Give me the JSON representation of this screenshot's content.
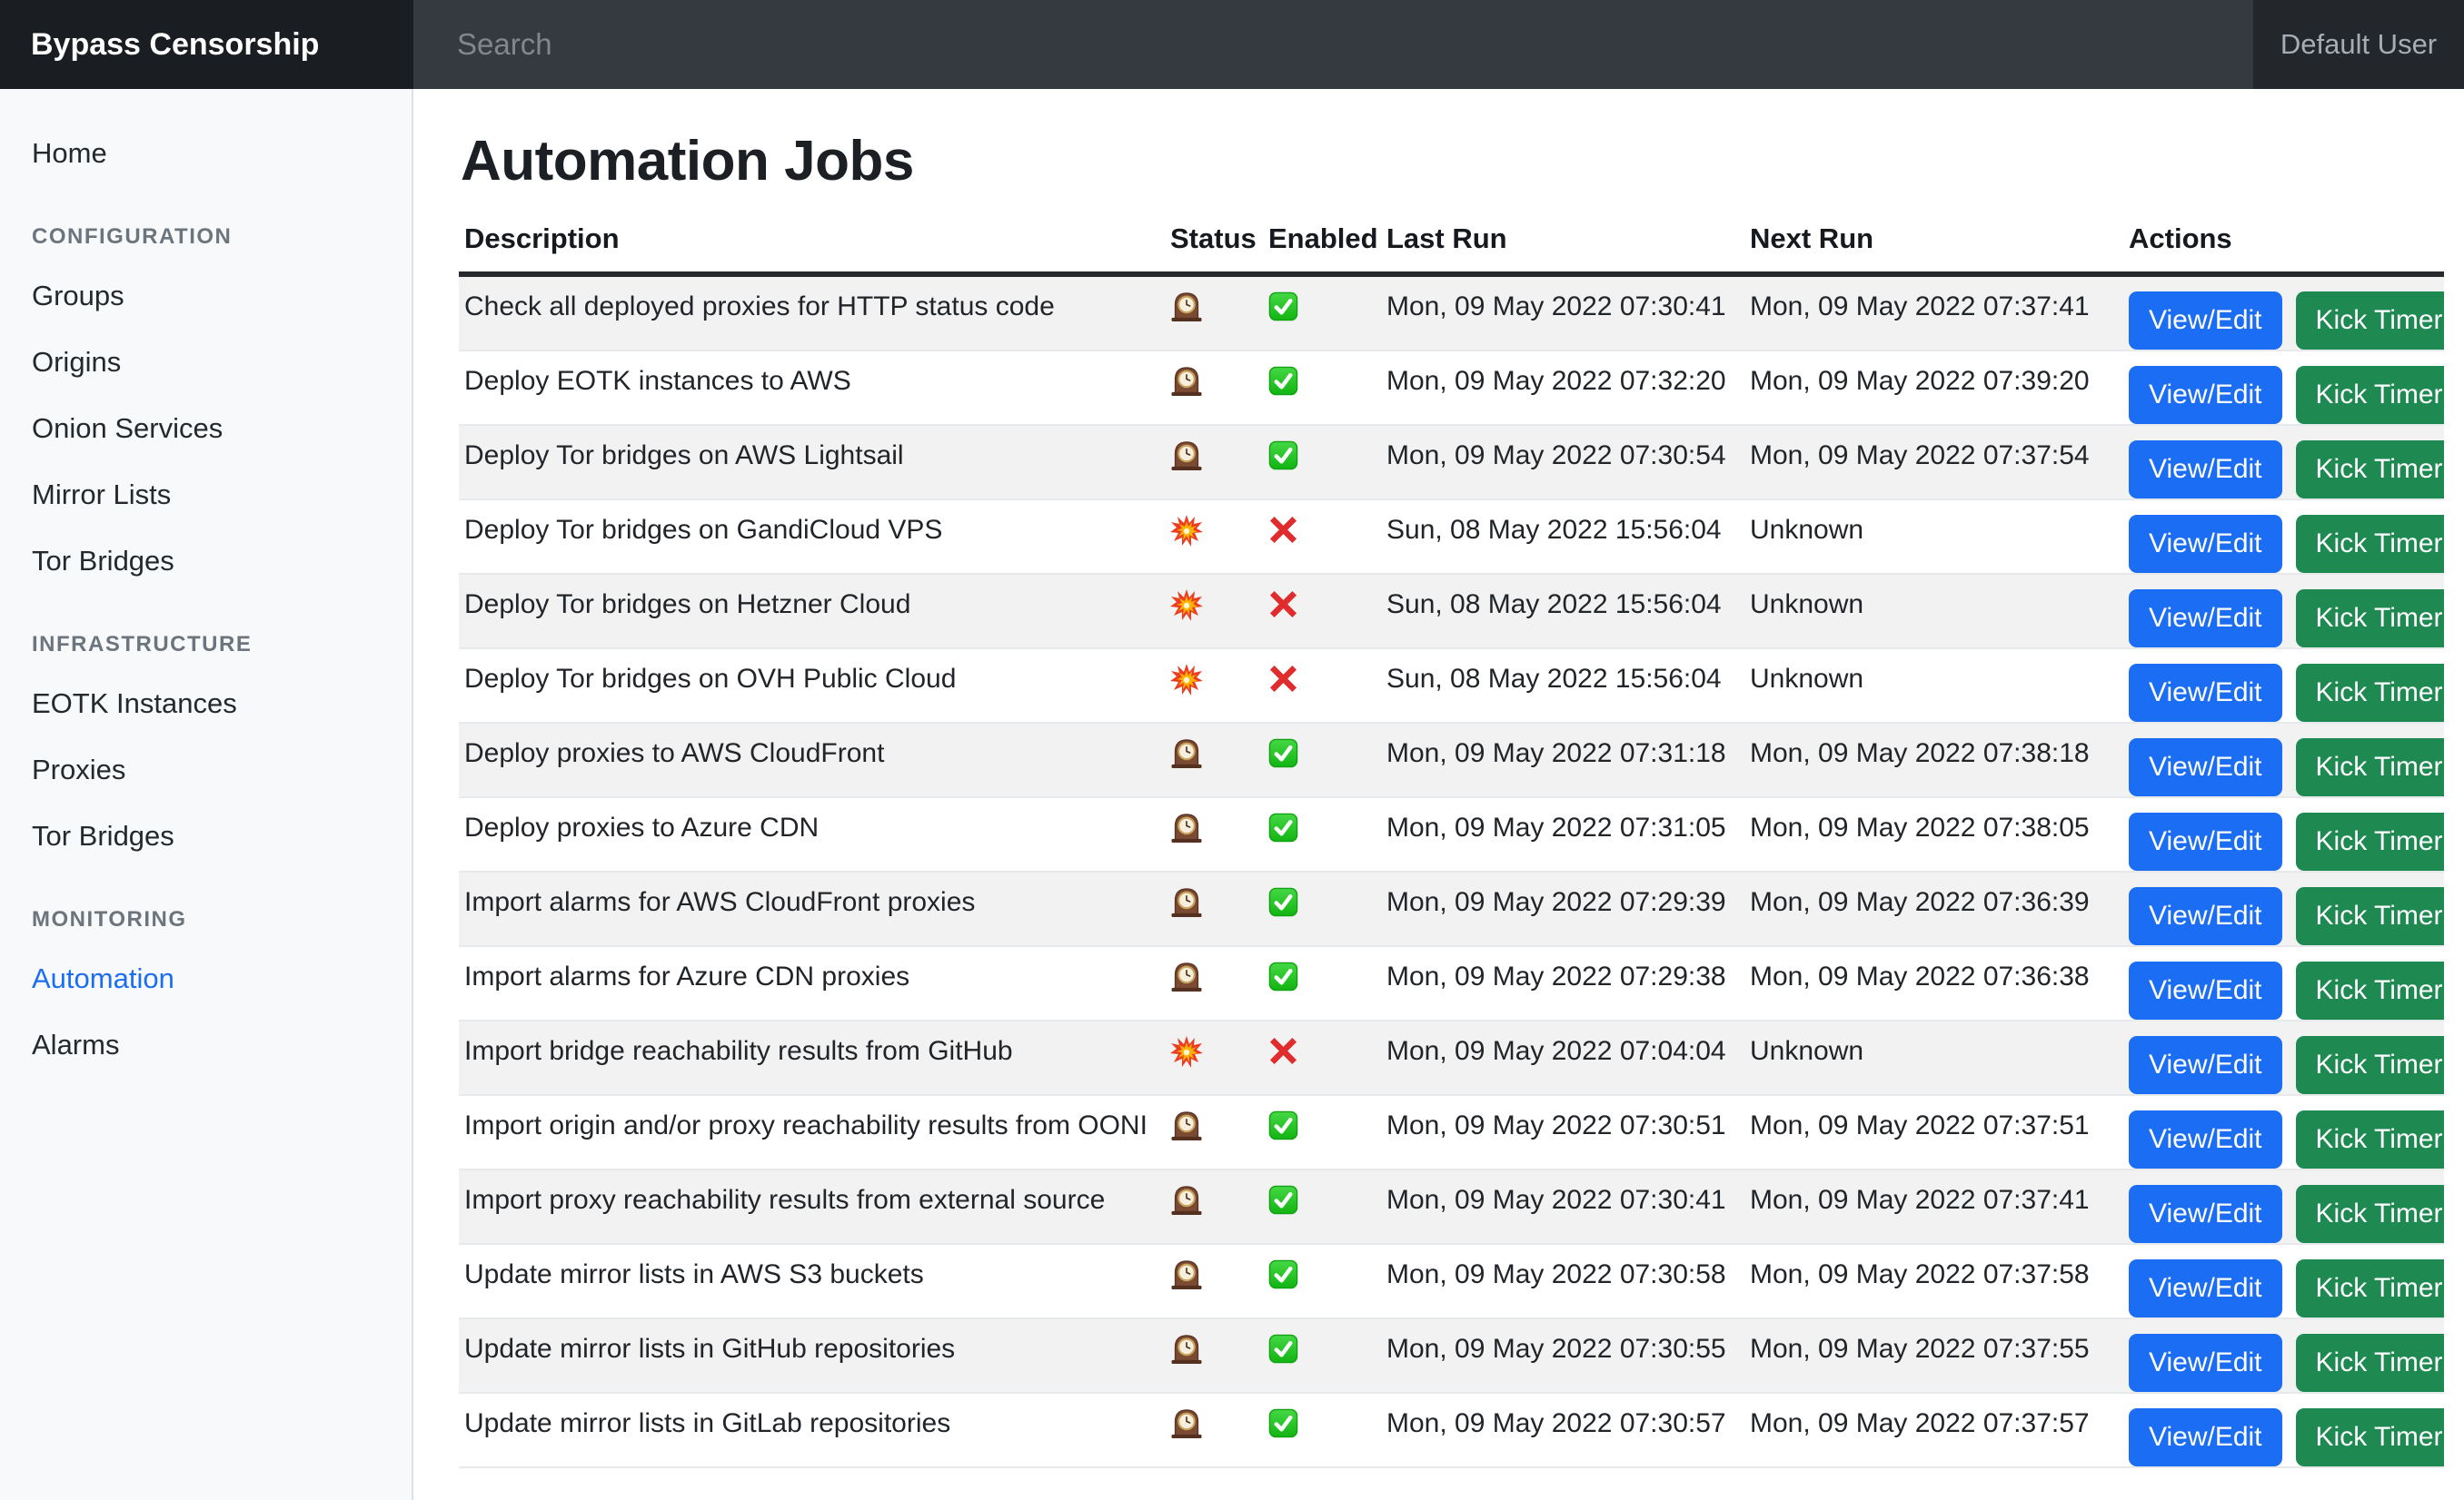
{
  "topbar": {
    "brand": "Bypass Censorship",
    "search_placeholder": "Search",
    "user_label": "Default User"
  },
  "sidebar": {
    "items": [
      {
        "label": "Home",
        "type": "link"
      },
      {
        "label": "CONFIGURATION",
        "type": "section"
      },
      {
        "label": "Groups",
        "type": "link"
      },
      {
        "label": "Origins",
        "type": "link"
      },
      {
        "label": "Onion Services",
        "type": "link"
      },
      {
        "label": "Mirror Lists",
        "type": "link"
      },
      {
        "label": "Tor Bridges",
        "type": "link"
      },
      {
        "label": "INFRASTRUCTURE",
        "type": "section"
      },
      {
        "label": "EOTK Instances",
        "type": "link"
      },
      {
        "label": "Proxies",
        "type": "link"
      },
      {
        "label": "Tor Bridges",
        "type": "link"
      },
      {
        "label": "MONITORING",
        "type": "section"
      },
      {
        "label": "Automation",
        "type": "link",
        "active": true
      },
      {
        "label": "Alarms",
        "type": "link"
      }
    ]
  },
  "page": {
    "title": "Automation Jobs"
  },
  "icons": {
    "status_ok": "mantel-clock-icon",
    "status_error": "collision-icon",
    "enabled_true": "check-mark-icon",
    "enabled_false": "cross-mark-icon"
  },
  "colors": {
    "primary_button": "#1b6ef3",
    "success_button": "#1e8a52",
    "active_link": "#1b6ef3",
    "navbar": "#23272b",
    "brand_bg": "#1a1d21",
    "search_bg": "#343a40",
    "sidebar_bg": "#f8f9fa",
    "stripe": "#f2f2f2"
  },
  "table": {
    "columns": [
      "Description",
      "Status",
      "Enabled",
      "Last Run",
      "Next Run",
      "Actions"
    ],
    "actions": {
      "view_edit": "View/Edit",
      "kick_timer": "Kick Timer"
    },
    "rows": [
      {
        "description": "Check all deployed proxies for HTTP status code",
        "status": "ok",
        "enabled": true,
        "last_run": "Mon, 09 May 2022 07:30:41",
        "next_run": "Mon, 09 May 2022 07:37:41"
      },
      {
        "description": "Deploy EOTK instances to AWS",
        "status": "ok",
        "enabled": true,
        "last_run": "Mon, 09 May 2022 07:32:20",
        "next_run": "Mon, 09 May 2022 07:39:20"
      },
      {
        "description": "Deploy Tor bridges on AWS Lightsail",
        "status": "ok",
        "enabled": true,
        "last_run": "Mon, 09 May 2022 07:30:54",
        "next_run": "Mon, 09 May 2022 07:37:54"
      },
      {
        "description": "Deploy Tor bridges on GandiCloud VPS",
        "status": "error",
        "enabled": false,
        "last_run": "Sun, 08 May 2022 15:56:04",
        "next_run": "Unknown"
      },
      {
        "description": "Deploy Tor bridges on Hetzner Cloud",
        "status": "error",
        "enabled": false,
        "last_run": "Sun, 08 May 2022 15:56:04",
        "next_run": "Unknown"
      },
      {
        "description": "Deploy Tor bridges on OVH Public Cloud",
        "status": "error",
        "enabled": false,
        "last_run": "Sun, 08 May 2022 15:56:04",
        "next_run": "Unknown"
      },
      {
        "description": "Deploy proxies to AWS CloudFront",
        "status": "ok",
        "enabled": true,
        "last_run": "Mon, 09 May 2022 07:31:18",
        "next_run": "Mon, 09 May 2022 07:38:18"
      },
      {
        "description": "Deploy proxies to Azure CDN",
        "status": "ok",
        "enabled": true,
        "last_run": "Mon, 09 May 2022 07:31:05",
        "next_run": "Mon, 09 May 2022 07:38:05"
      },
      {
        "description": "Import alarms for AWS CloudFront proxies",
        "status": "ok",
        "enabled": true,
        "last_run": "Mon, 09 May 2022 07:29:39",
        "next_run": "Mon, 09 May 2022 07:36:39"
      },
      {
        "description": "Import alarms for Azure CDN proxies",
        "status": "ok",
        "enabled": true,
        "last_run": "Mon, 09 May 2022 07:29:38",
        "next_run": "Mon, 09 May 2022 07:36:38"
      },
      {
        "description": "Import bridge reachability results from GitHub",
        "status": "error",
        "enabled": false,
        "last_run": "Mon, 09 May 2022 07:04:04",
        "next_run": "Unknown"
      },
      {
        "description": "Import origin and/or proxy reachability results from OONI",
        "status": "ok",
        "enabled": true,
        "last_run": "Mon, 09 May 2022 07:30:51",
        "next_run": "Mon, 09 May 2022 07:37:51"
      },
      {
        "description": "Import proxy reachability results from external source",
        "status": "ok",
        "enabled": true,
        "last_run": "Mon, 09 May 2022 07:30:41",
        "next_run": "Mon, 09 May 2022 07:37:41"
      },
      {
        "description": "Update mirror lists in AWS S3 buckets",
        "status": "ok",
        "enabled": true,
        "last_run": "Mon, 09 May 2022 07:30:58",
        "next_run": "Mon, 09 May 2022 07:37:58"
      },
      {
        "description": "Update mirror lists in GitHub repositories",
        "status": "ok",
        "enabled": true,
        "last_run": "Mon, 09 May 2022 07:30:55",
        "next_run": "Mon, 09 May 2022 07:37:55"
      },
      {
        "description": "Update mirror lists in GitLab repositories",
        "status": "ok",
        "enabled": true,
        "last_run": "Mon, 09 May 2022 07:30:57",
        "next_run": "Mon, 09 May 2022 07:37:57"
      }
    ]
  }
}
